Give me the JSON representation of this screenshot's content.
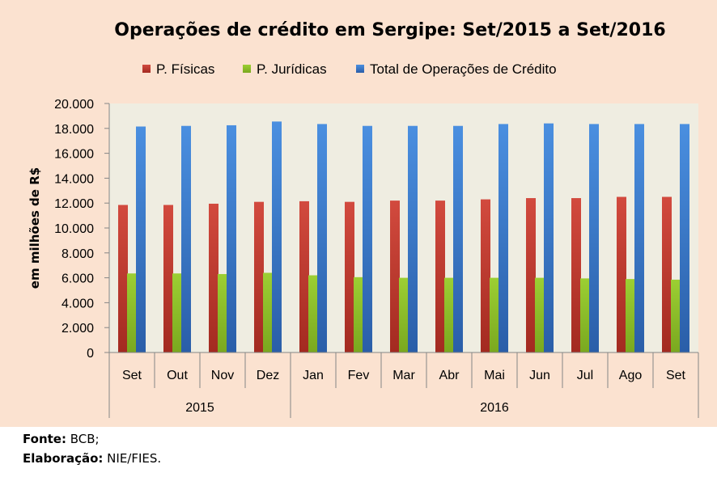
{
  "chart_data": {
    "type": "bar",
    "title": "Operações de crédito em Sergipe:  Set/2015 a Set/2016",
    "ylabel": "em milhões de R$",
    "xlabel": "",
    "ylim": [
      0,
      20000
    ],
    "y_ticks": [
      "0",
      "2.000",
      "4.000",
      "6.000",
      "8.000",
      "10.000",
      "12.000",
      "14.000",
      "16.000",
      "18.000",
      "20.000"
    ],
    "categories": [
      "Set",
      "Out",
      "Nov",
      "Dez",
      "Jan",
      "Fev",
      "Mar",
      "Abr",
      "Mai",
      "Jun",
      "Jul",
      "Ago",
      "Set"
    ],
    "year_groups": [
      {
        "label": "2015",
        "count": 4
      },
      {
        "label": "2016",
        "count": 9
      }
    ],
    "legend_position": "top",
    "grid": false,
    "series": [
      {
        "name": "P. Físicas",
        "color": "#c0392b",
        "values": [
          11850,
          11850,
          11950,
          12100,
          12150,
          12100,
          12200,
          12200,
          12300,
          12400,
          12400,
          12500,
          12500
        ]
      },
      {
        "name": "P. Jurídicas",
        "color": "#8fbf2a",
        "values": [
          6350,
          6350,
          6300,
          6400,
          6200,
          6050,
          6000,
          6000,
          6000,
          6000,
          5950,
          5900,
          5850
        ]
      },
      {
        "name": "Total de Operações de Crédito",
        "color": "#3c7fd0",
        "values": [
          18150,
          18200,
          18250,
          18550,
          18350,
          18200,
          18200,
          18200,
          18350,
          18400,
          18350,
          18350,
          18350
        ]
      }
    ]
  },
  "footer": {
    "source_label": "Fonte:",
    "source_value": "BCB;",
    "credit_label": "Elaboração:",
    "credit_value": "NIE/FIES."
  }
}
